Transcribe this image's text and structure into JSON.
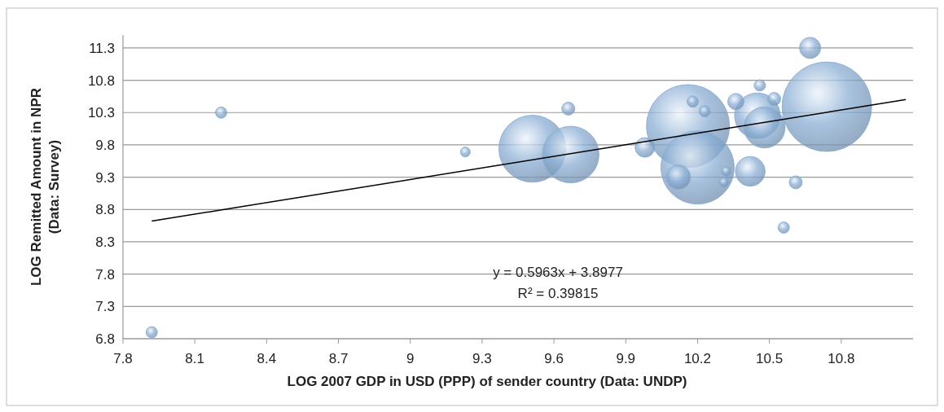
{
  "chart_data": {
    "type": "bubble",
    "xlabel": "LOG 2007 GDP in USD (PPP) of sender country (Data: UNDP)",
    "ylabel": "LOG Remitted Amount in NPR (Data: Survey)",
    "xlim": [
      7.8,
      11.1
    ],
    "xticks": [
      7.8,
      8.1,
      8.4,
      8.7,
      9,
      9.3,
      9.6,
      9.9,
      10.2,
      10.5,
      10.8
    ],
    "ylim": [
      6.8,
      11.5
    ],
    "yticks": [
      6.8,
      7.3,
      7.8,
      8.3,
      8.8,
      9.3,
      9.8,
      10.3,
      10.8,
      11.3
    ],
    "grid": "y",
    "annotations": [
      "y = 0.5963x + 3.8977",
      "R² = 0.39815"
    ],
    "series": [
      {
        "color": "#8aaed4",
        "x": [
          7.92,
          8.21,
          9.23,
          9.66,
          9.51,
          9.67,
          9.98,
          10.16,
          10.2,
          10.12,
          10.18,
          10.23,
          10.32,
          10.31,
          10.42,
          10.45,
          10.48,
          10.36,
          10.46,
          10.52,
          10.67,
          10.74,
          10.61,
          10.56
        ],
        "values": [
          6.9,
          10.3,
          9.69,
          10.36,
          9.74,
          9.65,
          9.76,
          10.09,
          9.45,
          9.3,
          10.47,
          10.32,
          9.39,
          9.22,
          9.39,
          10.25,
          10.07,
          10.47,
          10.72,
          10.51,
          11.3,
          10.39,
          9.22,
          8.52
        ],
        "sizes": [
          0.016,
          0.016,
          0.012,
          0.021,
          0.56,
          0.4,
          0.048,
          0.86,
          0.67,
          0.074,
          0.016,
          0.016,
          0.012,
          0.012,
          0.11,
          0.26,
          0.21,
          0.033,
          0.016,
          0.021,
          0.056,
          1,
          0.021,
          0.016
        ]
      },
      {
        "type": "line",
        "color": "#000000",
        "x": [
          7.92,
          11.07
        ],
        "values": [
          8.62,
          10.5
        ]
      }
    ]
  }
}
